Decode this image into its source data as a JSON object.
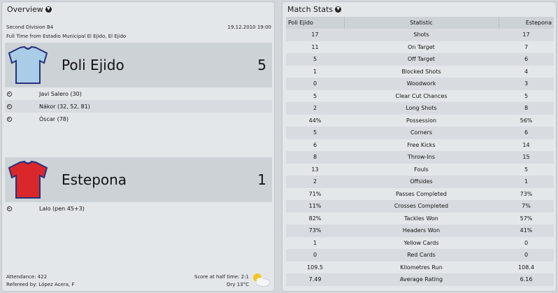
{
  "overview": {
    "title": "Overview",
    "competition": "Second Division B4",
    "datetime": "19.12.2010 19:00",
    "venue_line": "Full Time from Estadio Municipal El Ejido, El Ejido",
    "home": {
      "name": "Poli Ejido",
      "score": "5",
      "shirt_color": "#a9cde6",
      "scorers": [
        "Javi Salero (30)",
        "Nákor (32, 52, 81)",
        "Óscar (78)"
      ]
    },
    "away": {
      "name": "Estepona",
      "score": "1",
      "shirt_color": "#d9272c",
      "scorers": [
        "Lalo (pen 45+3)"
      ]
    },
    "attendance": "Attendance: 422",
    "referee": "Refereed by: López Acera, F",
    "half_time": "Score at half time: 2:1",
    "weather": "Dry 13°C"
  },
  "stats": {
    "title": "Match Stats",
    "headers": [
      "Poli Ejido",
      "Statistic",
      "Estepona"
    ],
    "rows": [
      [
        "17",
        "Shots",
        "17"
      ],
      [
        "11",
        "On Target",
        "7"
      ],
      [
        "5",
        "Off Target",
        "6"
      ],
      [
        "1",
        "Blocked Shots",
        "4"
      ],
      [
        "0",
        "Woodwork",
        "3"
      ],
      [
        "5",
        "Clear Cut Chances",
        "5"
      ],
      [
        "2",
        "Long Shots",
        "8"
      ],
      [
        "44%",
        "Possession",
        "56%"
      ],
      [
        "5",
        "Corners",
        "6"
      ],
      [
        "6",
        "Free Kicks",
        "14"
      ],
      [
        "8",
        "Throw-Ins",
        "15"
      ],
      [
        "13",
        "Fouls",
        "5"
      ],
      [
        "2",
        "Offsides",
        "1"
      ],
      [
        "71%",
        "Passes Completed",
        "73%"
      ],
      [
        "11%",
        "Crosses Completed",
        "7%"
      ],
      [
        "82%",
        "Tackles Won",
        "57%"
      ],
      [
        "73%",
        "Headers Won",
        "41%"
      ],
      [
        "1",
        "Yellow Cards",
        "0"
      ],
      [
        "0",
        "Red Cards",
        "0"
      ],
      [
        "109.5",
        "Kilometres Run",
        "108.4"
      ],
      [
        "7.49",
        "Average Rating",
        "6.16"
      ]
    ]
  }
}
